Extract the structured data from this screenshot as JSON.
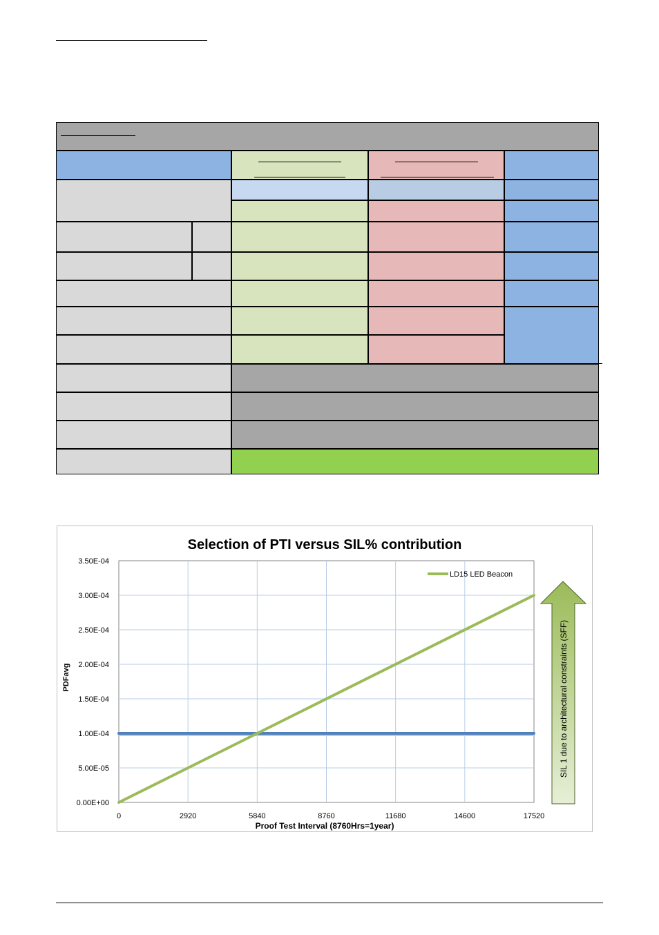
{
  "chart_data": {
    "type": "line",
    "title": "Selection of PTI versus SIL% contribution",
    "xlabel": "Proof Test Interval (8760Hrs=1year)",
    "ylabel": "PDFavg",
    "x_ticks": [
      0,
      2920,
      5840,
      8760,
      11680,
      14600,
      17520
    ],
    "y_ticks": [
      "0.00E+00",
      "5.00E-05",
      "1.00E-04",
      "1.50E-04",
      "2.00E-04",
      "2.50E-04",
      "3.00E-04",
      "3.50E-04"
    ],
    "xlim": [
      0,
      17520
    ],
    "ylim": [
      0,
      0.00035
    ],
    "grid": true,
    "legend_position": "top-right",
    "series": [
      {
        "name": "LD15 LED Beacon",
        "x": [
          0,
          17520
        ],
        "y": [
          0,
          0.0003
        ],
        "color": "#9bbb59"
      },
      {
        "x": [
          0,
          17520
        ],
        "y": [
          0.0001,
          0.0001
        ],
        "color": "#4f81bd"
      }
    ],
    "annotation": {
      "text": "SIL 1 due to architectural constraints (SFF)",
      "arrow_color": "#9bbb59",
      "arrow_color_light": "#e6efd7"
    }
  }
}
